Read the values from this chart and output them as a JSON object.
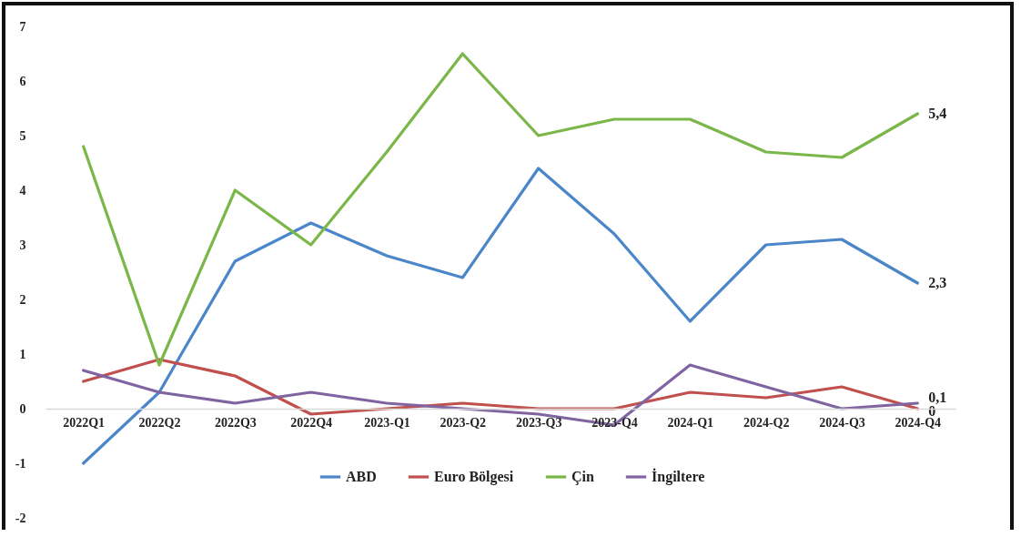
{
  "chart_data": {
    "type": "line",
    "categories": [
      "2022Q1",
      "2022Q2",
      "2022Q3",
      "2022Q4",
      "2023-Q1",
      "2023-Q2",
      "2023-Q3",
      "2023-Q4",
      "2024-Q1",
      "2024-Q2",
      "2024-Q3",
      "2024-Q4"
    ],
    "series": [
      {
        "name": "ABD",
        "color": "#4a86c8",
        "values": [
          -1,
          0.3,
          2.7,
          3.4,
          2.8,
          2.4,
          4.4,
          3.2,
          1.6,
          3.0,
          3.1,
          2.3
        ],
        "value_labels": [
          null,
          null,
          null,
          null,
          null,
          null,
          null,
          null,
          null,
          null,
          null,
          "2,3"
        ]
      },
      {
        "name": "Euro Bölgesi",
        "color": "#c0504d",
        "values": [
          0.5,
          0.9,
          0.6,
          -0.1,
          0.0,
          0.1,
          0.0,
          0.0,
          0.3,
          0.2,
          0.4,
          0.0
        ],
        "value_labels": [
          null,
          null,
          null,
          null,
          null,
          null,
          null,
          null,
          null,
          null,
          null,
          "0"
        ]
      },
      {
        "name": "Çin",
        "color": "#7ab648",
        "values": [
          4.8,
          0.8,
          4.0,
          3.0,
          4.7,
          6.5,
          5.0,
          5.3,
          5.3,
          4.7,
          4.6,
          5.4
        ],
        "value_labels": [
          null,
          null,
          null,
          null,
          null,
          null,
          null,
          null,
          null,
          null,
          null,
          "5,4"
        ]
      },
      {
        "name": "İngiltere",
        "color": "#8064a2",
        "values": [
          0.7,
          0.3,
          0.1,
          0.3,
          0.1,
          0.0,
          -0.1,
          -0.3,
          0.8,
          0.4,
          0.0,
          0.1
        ],
        "value_labels": [
          null,
          null,
          null,
          null,
          null,
          null,
          null,
          null,
          null,
          null,
          null,
          "0,1"
        ]
      }
    ],
    "ylim": [
      -2,
      7
    ],
    "yticks": [
      -2,
      -1,
      0,
      1,
      2,
      3,
      4,
      5,
      6,
      7
    ],
    "legend": "bottom",
    "marker": "none",
    "line_style": "solid",
    "grid": false
  }
}
